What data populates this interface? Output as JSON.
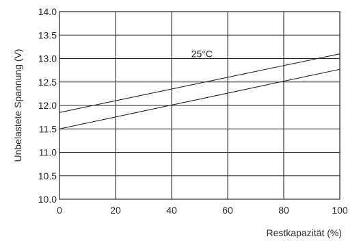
{
  "chart_data": {
    "type": "line",
    "xlabel": "Restkapazität (%)",
    "ylabel": "Unbelastete Spannung (V)",
    "xlim": [
      0,
      100
    ],
    "ylim": [
      10.0,
      14.0
    ],
    "x_ticks": [
      "0",
      "20",
      "40",
      "60",
      "80",
      "100"
    ],
    "y_ticks": [
      "10.0",
      "10.5",
      "11.0",
      "11.5",
      "12.0",
      "12.5",
      "13.0",
      "13.5",
      "14.0"
    ],
    "grid": true,
    "annotations": [
      {
        "text": "25°C",
        "x": 47,
        "y": 13.1
      }
    ],
    "series": [
      {
        "x": [
          0,
          100
        ],
        "y": [
          11.85,
          13.1
        ]
      },
      {
        "x": [
          0,
          100
        ],
        "y": [
          11.5,
          12.77
        ]
      }
    ],
    "colors": {
      "line": "#222222",
      "grid": "#222222",
      "text": "#2a2a2a"
    }
  }
}
